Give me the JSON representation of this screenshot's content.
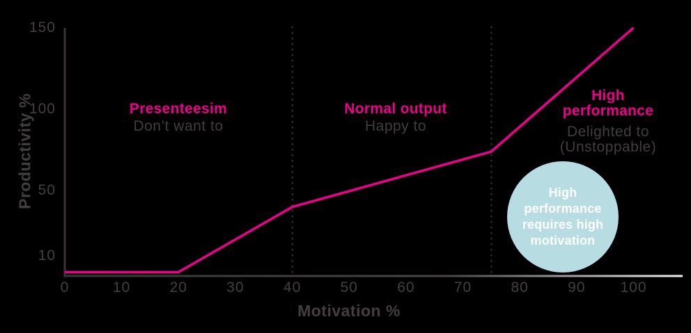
{
  "chart_data": {
    "type": "line",
    "title": "",
    "xlabel": "Motivation %",
    "ylabel": "Productivity %",
    "x_ticks": [
      "0",
      "10",
      "20",
      "30",
      "40",
      "50",
      "60",
      "70",
      "80",
      "90",
      "100"
    ],
    "y_ticks": [
      "150",
      "100",
      "50",
      "10"
    ],
    "xlim": [
      0,
      108
    ],
    "ylim": [
      0,
      150
    ],
    "grid": false,
    "legend": "none",
    "series": [
      {
        "name": "productivity-vs-motivation",
        "x": [
          0,
          20,
          40,
          75,
          100
        ],
        "y": [
          0,
          0,
          40,
          74,
          150
        ],
        "color": "#ec008c"
      }
    ],
    "zone_dividers_x": [
      40,
      75
    ],
    "zones": [
      {
        "title": "Presenteesim",
        "subtitle": "Don’t want to",
        "x_range": [
          0,
          40
        ]
      },
      {
        "title": "Normal output",
        "subtitle": "Happy to",
        "x_range": [
          40,
          75
        ]
      },
      {
        "title": "High performance",
        "subtitle": "Delighted to (Unstoppable)",
        "x_range": [
          75,
          100
        ]
      }
    ],
    "callout": {
      "text": "High performance requires high motivation",
      "shape": "circle",
      "fill": "#b7dce1",
      "text_color": "#ffffff"
    }
  },
  "colors": {
    "background": "#000000",
    "line_pink": "#ec008c",
    "axis_dark": "#393435",
    "axis_fade_end": "#f0f0f0",
    "text_gray": "#453f41",
    "circle_fill": "#b7dce1"
  }
}
